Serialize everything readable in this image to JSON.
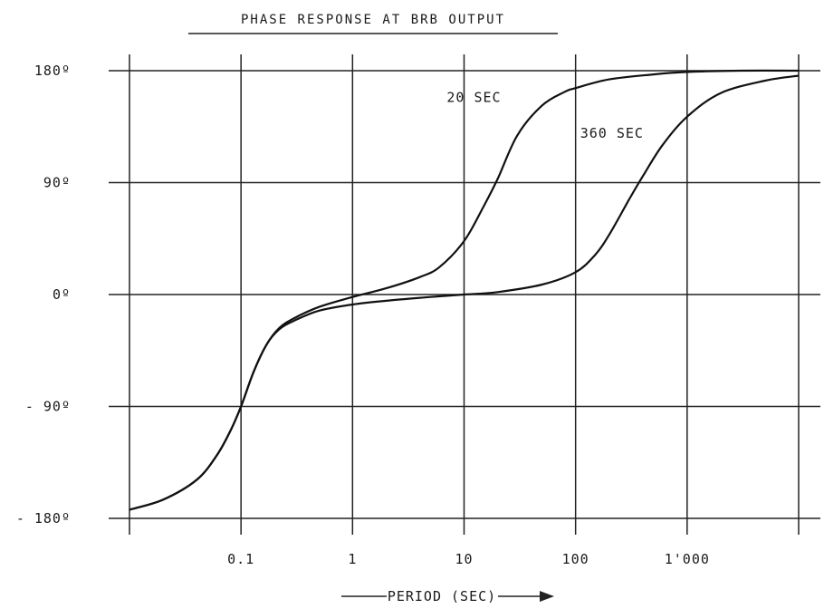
{
  "chart_data": {
    "type": "line",
    "title": "PHASE RESPONSE AT BRB OUTPUT",
    "xlabel": "PERIOD (SEC)",
    "ylabel": "",
    "x_scale": "log",
    "xlim": [
      0.01,
      10000
    ],
    "ylim": [
      -200,
      180
    ],
    "grid": true,
    "x_tick_labels": [
      {
        "x": 0.1,
        "label": "0.1"
      },
      {
        "x": 1,
        "label": "1"
      },
      {
        "x": 10,
        "label": "10"
      },
      {
        "x": 100,
        "label": "100"
      },
      {
        "x": 1000,
        "label": "1'000"
      }
    ],
    "y_tick_labels": [
      {
        "y": 180,
        "label": "180º"
      },
      {
        "y": 90,
        "label": "90º"
      },
      {
        "y": 0,
        "label": "0º"
      },
      {
        "y": -90,
        "label": "- 90º"
      },
      {
        "y": -180,
        "label": "- 180º"
      }
    ],
    "series": [
      {
        "name": "20 SEC",
        "x": [
          0.01,
          0.02,
          0.04,
          0.06,
          0.08,
          0.1,
          0.13,
          0.17,
          0.22,
          0.3,
          0.5,
          1,
          2,
          4,
          6,
          10,
          15,
          20,
          30,
          50,
          80,
          100,
          200,
          500,
          1000,
          3000,
          10000
        ],
        "y": [
          -173,
          -165,
          -149,
          -130,
          -110,
          -90,
          -62,
          -40,
          -27,
          -19,
          -10,
          -2,
          5,
          14,
          22,
          43,
          71,
          93,
          128,
          152,
          163,
          166,
          173,
          177,
          179,
          180,
          180
        ]
      },
      {
        "name": "360 SEC",
        "x": [
          0.01,
          0.02,
          0.04,
          0.06,
          0.08,
          0.1,
          0.13,
          0.17,
          0.22,
          0.3,
          0.5,
          1,
          2,
          5,
          10,
          20,
          50,
          100,
          150,
          200,
          300,
          400,
          600,
          1000,
          2000,
          5000,
          10000
        ],
        "y": [
          -173,
          -165,
          -149,
          -130,
          -110,
          -90,
          -62,
          -40,
          -28,
          -21,
          -13,
          -8,
          -5,
          -2,
          0,
          2,
          8,
          18,
          32,
          48,
          76,
          95,
          120,
          143,
          162,
          172,
          176
        ]
      }
    ],
    "annotations": [
      {
        "text": "20 SEC",
        "x": 7,
        "y": 155
      },
      {
        "text": "360 SEC",
        "x": 110,
        "y": 126
      }
    ]
  }
}
